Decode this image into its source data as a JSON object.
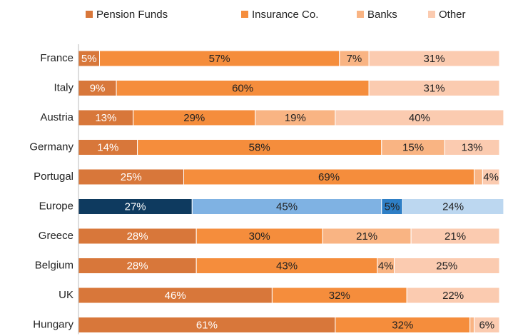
{
  "chart_data": {
    "type": "stacked-bar-horizontal",
    "categories": [
      "France",
      "Italy",
      "Austria",
      "Germany",
      "Portugal",
      "Europe",
      "Greece",
      "Belgium",
      "UK",
      "Hungary"
    ],
    "xlim": [
      0,
      100
    ],
    "highlight": "Europe",
    "series": [
      {
        "name": "Pension Funds",
        "color": "#d8773a",
        "highlight_color": "#0e3a5f",
        "label_color": "#ffffff",
        "values": [
          5,
          9,
          13,
          14,
          25,
          27,
          28,
          28,
          46,
          61
        ],
        "value_labels": [
          "5%",
          "9%",
          "13%",
          "14%",
          "25%",
          "27%",
          "28%",
          "28%",
          "46%",
          "61%"
        ]
      },
      {
        "name": "Insurance Co.",
        "color": "#f58d3c",
        "highlight_color": "#7fb2e3",
        "label_color": "#222222",
        "values": [
          57,
          60,
          29,
          58,
          69,
          45,
          30,
          43,
          32,
          32
        ],
        "value_labels": [
          "57%",
          "60%",
          "29%",
          "58%",
          "69%",
          "45%",
          "30%",
          "43%",
          "32%",
          "32%"
        ]
      },
      {
        "name": "Banks",
        "color": "#f9b483",
        "highlight_color": "#2e7fc6",
        "label_color": "#222222",
        "values": [
          7,
          null,
          19,
          15,
          2,
          5,
          21,
          4,
          null,
          1
        ],
        "value_labels": [
          "7%",
          null,
          "19%",
          "15%",
          null,
          "5%",
          "21%",
          "4%",
          null,
          null
        ]
      },
      {
        "name": "Other",
        "color": "#fbcbb0",
        "highlight_color": "#bcd7f0",
        "label_color": "#222222",
        "values": [
          31,
          31,
          40,
          13,
          4,
          24,
          21,
          25,
          22,
          6
        ],
        "value_labels": [
          "31%",
          "31%",
          "40%",
          "13%",
          "4%",
          "24%",
          "21%",
          "25%",
          "22%",
          "6%"
        ]
      }
    ]
  }
}
